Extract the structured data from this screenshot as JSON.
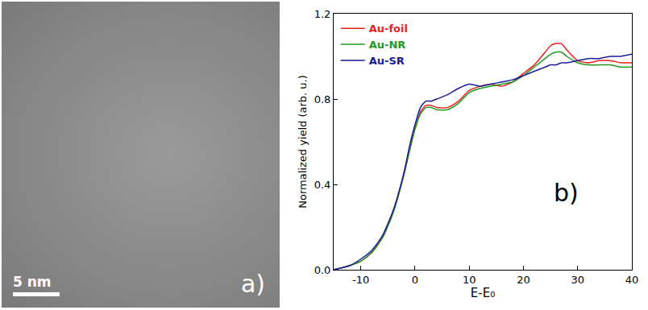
{
  "image_panel": {
    "label": "a)",
    "scale_bar": "5 nm"
  },
  "chart_data": {
    "type": "line",
    "label": "b)",
    "x_label": "E-E₀",
    "y_label": "Normalized yield (arb. u.)",
    "x": [
      -15,
      -12,
      -10,
      -8,
      -6,
      -4,
      -2,
      -1,
      0,
      1,
      2,
      3,
      4,
      6,
      8,
      10,
      12,
      14,
      16,
      18,
      20,
      22,
      24,
      25,
      26,
      27,
      28,
      30,
      32,
      34,
      36,
      38,
      40
    ],
    "series": [
      {
        "name": "Au-foil",
        "color": "#e8231e",
        "values": [
          0.0,
          0.02,
          0.04,
          0.08,
          0.15,
          0.27,
          0.45,
          0.56,
          0.66,
          0.74,
          0.77,
          0.77,
          0.76,
          0.76,
          0.79,
          0.84,
          0.86,
          0.87,
          0.86,
          0.88,
          0.92,
          0.96,
          1.02,
          1.05,
          1.06,
          1.06,
          1.03,
          0.98,
          0.97,
          0.98,
          0.98,
          0.97,
          0.97
        ]
      },
      {
        "name": "Au-NR",
        "color": "#1f9a1f",
        "values": [
          0.0,
          0.02,
          0.04,
          0.08,
          0.15,
          0.27,
          0.45,
          0.56,
          0.66,
          0.73,
          0.76,
          0.76,
          0.75,
          0.75,
          0.78,
          0.83,
          0.85,
          0.86,
          0.87,
          0.88,
          0.91,
          0.95,
          0.99,
          1.01,
          1.02,
          1.02,
          1.0,
          0.97,
          0.96,
          0.96,
          0.96,
          0.95,
          0.95
        ]
      },
      {
        "name": "Au-SR",
        "color": "#1a1a9a",
        "values": [
          0.0,
          0.02,
          0.05,
          0.09,
          0.16,
          0.28,
          0.46,
          0.58,
          0.68,
          0.76,
          0.79,
          0.79,
          0.8,
          0.82,
          0.85,
          0.87,
          0.86,
          0.87,
          0.88,
          0.89,
          0.91,
          0.93,
          0.95,
          0.96,
          0.96,
          0.97,
          0.97,
          0.98,
          0.99,
          0.99,
          1.0,
          1.0,
          1.01
        ]
      }
    ],
    "xlim": [
      -15,
      40
    ],
    "xticks": [
      -10,
      0,
      10,
      20,
      30,
      40
    ],
    "ylim": [
      0,
      1.2
    ],
    "yticks": [
      {
        "value": 0,
        "label": "0.0"
      },
      0.4,
      0.8,
      1.2
    ],
    "legend": "upper left",
    "grid": false
  }
}
